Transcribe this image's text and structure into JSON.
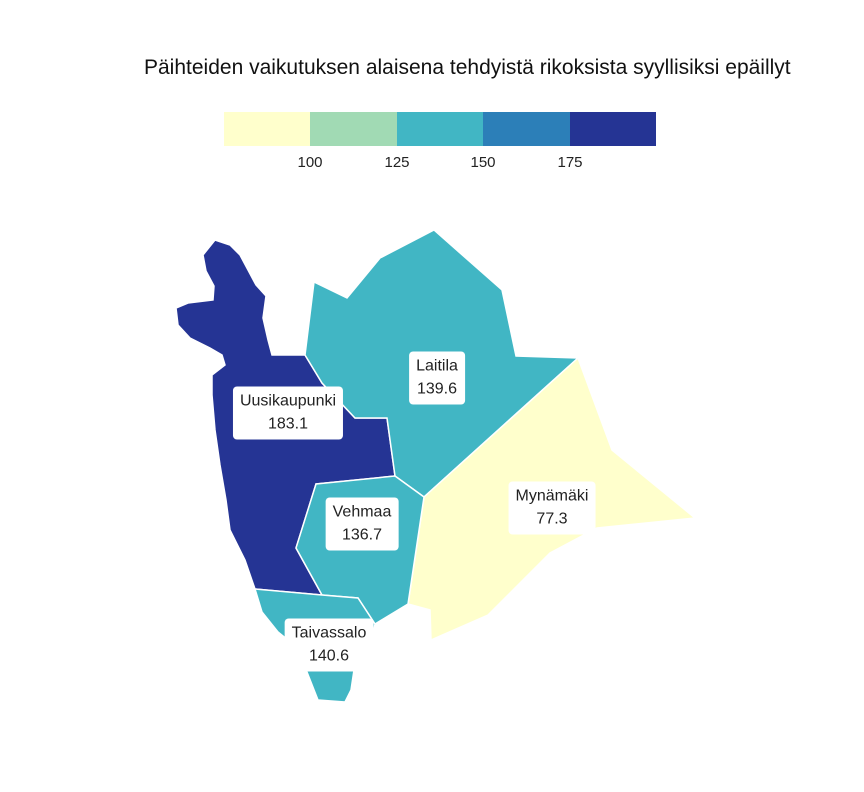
{
  "title": "Päihteiden vaikutuksen alaisena tehdyistä rikoksista syyllisiksi epäillyt",
  "legend": {
    "colors": [
      "#ffffcc",
      "#a1dab4",
      "#41b6c4",
      "#2c7fb8",
      "#253494"
    ],
    "ticks": [
      "100",
      "125",
      "150",
      "175"
    ]
  },
  "regions": [
    {
      "name": "Uusikaupunki",
      "value": "183.1",
      "color": "#253494"
    },
    {
      "name": "Laitila",
      "value": "139.6",
      "color": "#41b6c4"
    },
    {
      "name": "Mynämäki",
      "value": "77.3",
      "color": "#ffffcc"
    },
    {
      "name": "Vehmaa",
      "value": "136.7",
      "color": "#41b6c4"
    },
    {
      "name": "Taivassalo",
      "value": "140.6",
      "color": "#41b6c4"
    }
  ]
}
